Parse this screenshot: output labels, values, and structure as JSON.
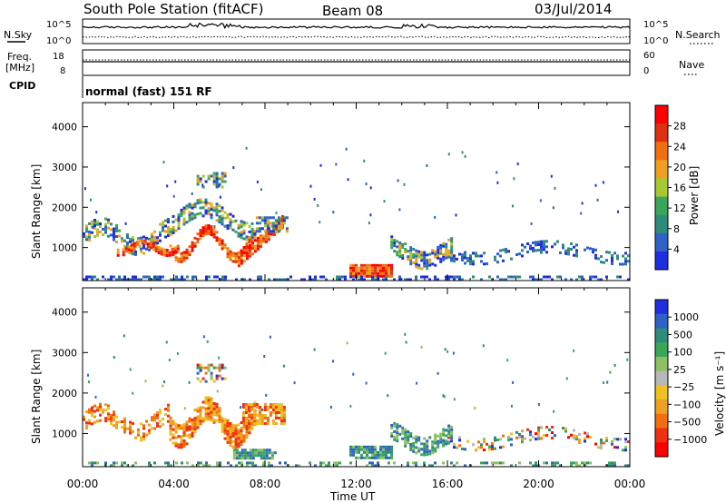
{
  "header": {
    "station": "South Pole Station (fitACF)",
    "beam": "Beam 08",
    "date": "03/Jul/2014"
  },
  "param_panel": {
    "nsky_label": "N.Sky",
    "nsearch_label": "N.Search",
    "freq_label_line1": "Freq.",
    "freq_label_line2": "[MHz]",
    "nave_label": "Nave",
    "cpid_label": "CPID",
    "cpid_value": "normal (fast) 151 RF",
    "noise_left_ticks": [
      "10^5",
      "10^0"
    ],
    "noise_right_ticks": [
      "10^5",
      "10^0"
    ],
    "freq_ticks": [
      "18",
      "8"
    ],
    "nave_ticks": [
      "60",
      "0"
    ]
  },
  "chart_data": [
    {
      "type": "heatmap",
      "panel": "power",
      "title": "",
      "xlabel": "Time UT",
      "ylabel": "Slant Range [km]",
      "x_ticks": [
        "00:00",
        "04:00",
        "08:00",
        "12:00",
        "16:00",
        "20:00",
        "00:00"
      ],
      "xlim_hours": [
        0,
        24
      ],
      "y_ticks": [
        1000,
        2000,
        3000,
        4000
      ],
      "ylim_km": [
        180,
        4600
      ],
      "colorbar": {
        "label": "Power [dB]",
        "ticks": [
          4,
          8,
          12,
          16,
          20,
          24,
          28
        ],
        "range": [
          0,
          32
        ],
        "colors": [
          "#1f2fe0",
          "#2f62c8",
          "#2f8c7a",
          "#3aa65a",
          "#a8c832",
          "#f0a020",
          "#f07010",
          "#e03010",
          "#ff0000"
        ]
      },
      "regions": [
        {
          "t": [
            0.0,
            4.0
          ],
          "r": [
            180,
            1900
          ],
          "level": "mixed"
        },
        {
          "t": [
            3.5,
            7.5
          ],
          "r": [
            600,
            2400
          ],
          "level": "high"
        },
        {
          "t": [
            7.0,
            9.0
          ],
          "r": [
            180,
            1800
          ],
          "level": "high"
        },
        {
          "t": [
            11.5,
            16.0
          ],
          "r": [
            180,
            1600
          ],
          "level": "high"
        },
        {
          "t": [
            16.0,
            24.0
          ],
          "r": [
            500,
            1300
          ],
          "level": "low"
        }
      ]
    },
    {
      "type": "heatmap",
      "panel": "velocity",
      "title": "",
      "xlabel": "Time UT",
      "ylabel": "Slant Range [km]",
      "x_ticks": [
        "00:00",
        "04:00",
        "08:00",
        "12:00",
        "16:00",
        "20:00",
        "00:00"
      ],
      "xlim_hours": [
        0,
        24
      ],
      "y_ticks": [
        1000,
        2000,
        3000,
        4000
      ],
      "ylim_km": [
        180,
        4600
      ],
      "colorbar": {
        "label": "Velocity [m s⁻¹]",
        "ticks": [
          "1000",
          "500",
          "100",
          "25",
          "−25",
          "−100",
          "−500",
          "−1000"
        ],
        "colors": [
          "#1f2fe0",
          "#2f62c8",
          "#2f8c7a",
          "#3aa65a",
          "#8cc060",
          "#b8b8b8",
          "#f0c020",
          "#f0a020",
          "#f07010",
          "#f03010",
          "#ff0000"
        ]
      },
      "regions": [
        {
          "t": [
            0.0,
            9.0
          ],
          "r": [
            500,
            2200
          ],
          "level": "negative"
        },
        {
          "t": [
            6.5,
            8.5
          ],
          "r": [
            180,
            900
          ],
          "level": "positive"
        },
        {
          "t": [
            11.5,
            16.0
          ],
          "r": [
            180,
            1500
          ],
          "level": "positive"
        },
        {
          "t": [
            16.0,
            24.0
          ],
          "r": [
            500,
            1300
          ],
          "level": "mixed"
        }
      ]
    }
  ],
  "colors": {
    "frame": "#000000",
    "ground_scatter": "#888888"
  }
}
